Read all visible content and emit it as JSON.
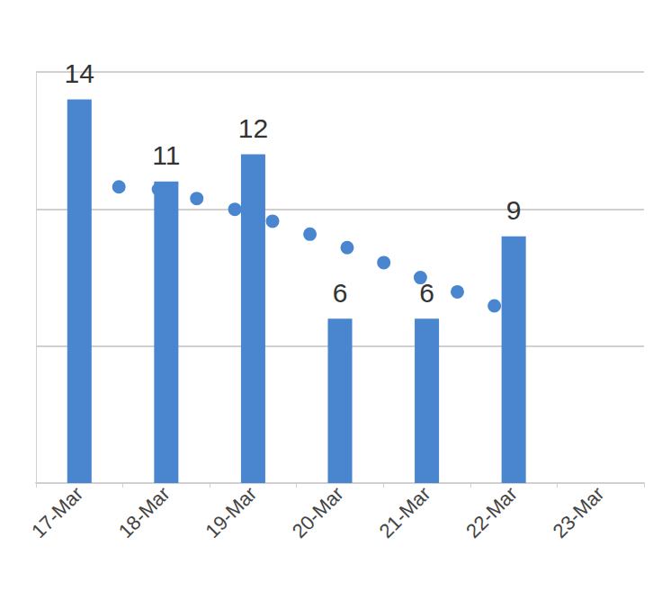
{
  "chart_data": {
    "type": "bar",
    "categories": [
      "17-Mar",
      "18-Mar",
      "19-Mar",
      "20-Mar",
      "21-Mar",
      "22-Mar",
      "23-Mar"
    ],
    "series": [
      {
        "type": "bar",
        "color": "#4a86d0",
        "data_labels": true,
        "values": [
          14,
          11,
          12,
          6,
          6,
          9,
          null
        ]
      },
      {
        "type": "line",
        "color": "#4a86d0",
        "line_style": "dotted",
        "marker": "none",
        "values": [
          10.9,
          10.7,
          9.8,
          8.7,
          7.4,
          6.2,
          null
        ]
      }
    ],
    "ylim": [
      0,
      15
    ],
    "yticks": [
      0,
      5,
      10,
      15
    ],
    "grid": true,
    "tick_labels": "x"
  }
}
